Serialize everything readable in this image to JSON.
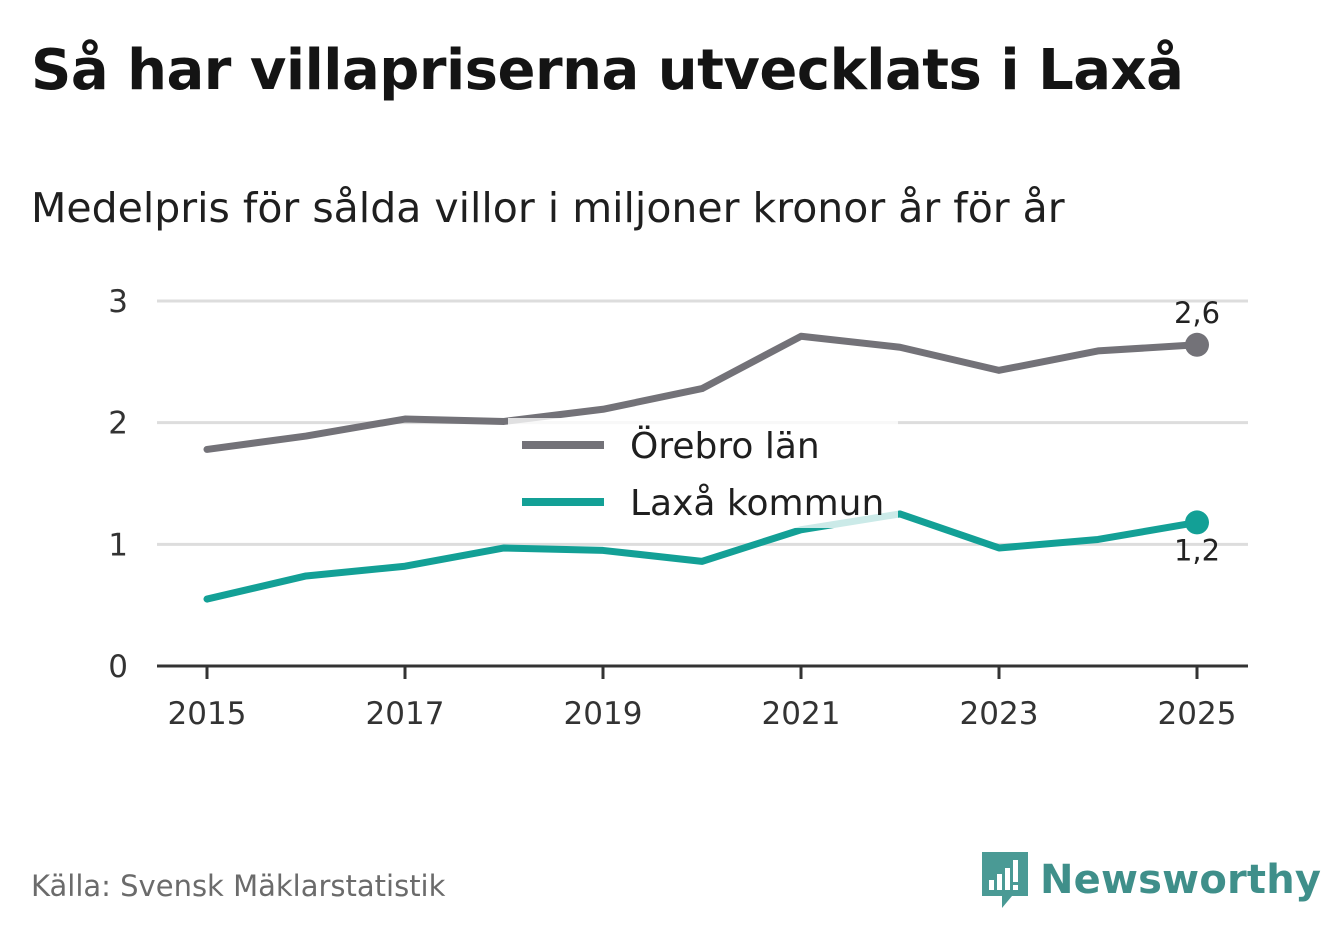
{
  "title": "Så har villapriserna utvecklats i Laxå",
  "subtitle": "Medelpris för sålda villor i miljoner kronor år för år",
  "source": "Källa: Svensk Mäklarstatistik",
  "brand": {
    "name": "Newsworthy",
    "icon": "newsworthy-logo-icon",
    "color": "#3f8f8a"
  },
  "chart_data": {
    "type": "line",
    "title": "Så har villapriserna utvecklats i Laxå",
    "subtitle": "Medelpris för sålda villor i miljoner kronor år för år",
    "xlabel": "",
    "ylabel": "",
    "x": [
      2015,
      2016,
      2017,
      2018,
      2019,
      2020,
      2021,
      2022,
      2023,
      2024,
      2025
    ],
    "xticks": [
      "2015",
      "2017",
      "2019",
      "2021",
      "2023",
      "2025"
    ],
    "xtick_values": [
      2015,
      2017,
      2019,
      2021,
      2023,
      2025
    ],
    "yticks": [
      "0",
      "1",
      "2",
      "3"
    ],
    "ytick_values": [
      0,
      1,
      2,
      3
    ],
    "ylim": [
      0,
      3
    ],
    "xlim": [
      2014.5,
      2025.5
    ],
    "grid": true,
    "legend_position": "center",
    "series": [
      {
        "name": "Örebro län",
        "color": "#737278",
        "values": [
          1.78,
          1.89,
          2.03,
          2.01,
          2.11,
          2.28,
          2.71,
          2.62,
          2.43,
          2.59,
          2.64
        ],
        "end_label": "2,6"
      },
      {
        "name": "Laxå kommun",
        "color": "#13a096",
        "values": [
          0.55,
          0.74,
          0.82,
          0.97,
          0.95,
          0.86,
          1.12,
          1.25,
          0.97,
          1.04,
          1.18
        ],
        "end_label": "1,2"
      }
    ]
  }
}
